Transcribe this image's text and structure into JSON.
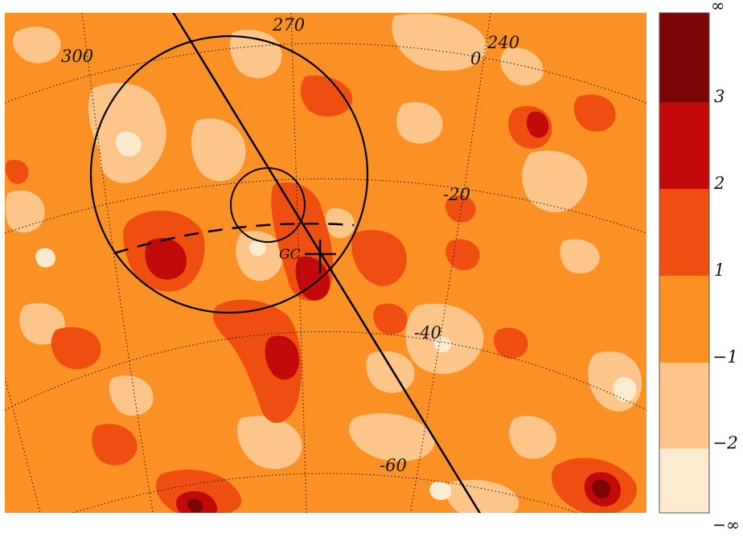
{
  "map": {
    "colors": {
      "level_lowest": "#fdebcf",
      "level_low": "#fcc68a",
      "level_mid": "#fb9124",
      "level_high": "#ee4e10",
      "level_higher": "#c20a0a",
      "level_highest": "#7c0404",
      "frame": "#000000"
    },
    "longitude_labels": [
      "300",
      "270",
      "240",
      "0"
    ],
    "latitude_labels": [
      "-20",
      "-40",
      "-60"
    ],
    "marker_label": "GC"
  },
  "colorbar": {
    "tick_labels": [
      "∞",
      "3",
      "2",
      "1",
      "−1",
      "−2",
      "−∞"
    ]
  }
}
